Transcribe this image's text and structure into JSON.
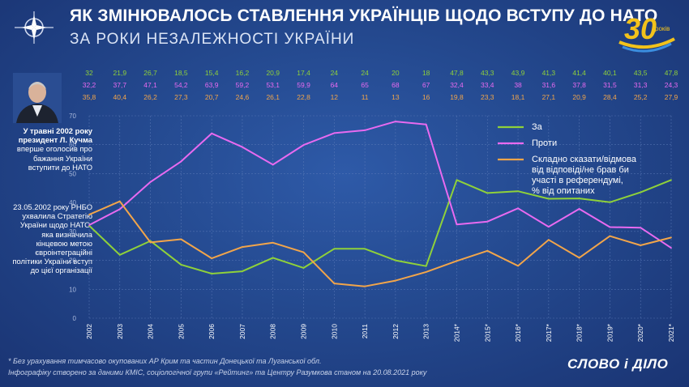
{
  "header": {
    "title": "ЯК ЗМІНЮВАЛОСЬ СТАВЛЕННЯ УКРАЇНЦІВ ЩОДО ВСТУПУ ДО НАТО",
    "subtitle": "ЗА РОКИ НЕЗАЛЕЖНОСТІ УКРАЇНИ",
    "anniversary_number": "30",
    "anniversary_word": "років"
  },
  "sidebar": {
    "note1_lead": "У травні 2002 року президент Л. Кучма",
    "note1_rest": "вперше оголосив про бажання України вступити до НАТО",
    "note2": "23.05.2002 року РНБО ухвалила Стратегію України щодо НАТО, яка визначила кінцевою метою євроінтеграційні політики України вступ до цієї організації"
  },
  "footer": {
    "note": "* Без урахування тимчасово окупованих АР Крим та частин Донецької та Луганської обл.",
    "source": "Інфографіку створено за даними КМІС, соціологічної групи «Рейтинг» та Центру Разумкова станом на 20.08.2021 року",
    "brand": "СЛОВО і ДІЛО"
  },
  "colors": {
    "for": "#8fd13a",
    "against": "#e86af0",
    "undecided": "#f2a54a",
    "background": "#24498f",
    "grid": "#5c7bb8"
  },
  "chart_data": {
    "type": "line",
    "categories": [
      "2002",
      "2003",
      "2004",
      "2005",
      "2006",
      "2007",
      "2008",
      "2009",
      "2010",
      "2011",
      "2012",
      "2013",
      "2014*",
      "2015*",
      "2016*",
      "2017*",
      "2018*",
      "2019*",
      "2020*",
      "2021*"
    ],
    "ylim": [
      0,
      70
    ],
    "yticks": [
      0,
      10,
      20,
      30,
      40,
      50,
      60,
      70
    ],
    "grid": true,
    "legend_position": "top-right",
    "series": [
      {
        "key": "for",
        "name": "За",
        "labels": [
          "32",
          "21,9",
          "26,7",
          "18,5",
          "15,4",
          "16,2",
          "20,9",
          "17,4",
          "24",
          "24",
          "20",
          "18",
          "47,8",
          "43,3",
          "43,9",
          "41,3",
          "41,4",
          "40,1",
          "43,5",
          "47,8"
        ],
        "values": [
          32,
          21.9,
          26.7,
          18.5,
          15.4,
          16.2,
          20.9,
          17.4,
          24,
          24,
          20,
          18,
          47.8,
          43.3,
          43.9,
          41.3,
          41.4,
          40.1,
          43.5,
          47.8
        ]
      },
      {
        "key": "against",
        "name": "Проти",
        "labels": [
          "32,2",
          "37,7",
          "47,1",
          "54,2",
          "63,9",
          "59,2",
          "53,1",
          "59,9",
          "64",
          "65",
          "68",
          "67",
          "32,4",
          "33,4",
          "38",
          "31,6",
          "37,8",
          "31,5",
          "31,3",
          "24,3"
        ],
        "values": [
          32.2,
          37.7,
          47.1,
          54.2,
          63.9,
          59.2,
          53.1,
          59.9,
          64,
          65,
          68,
          67,
          32.4,
          33.4,
          38,
          31.6,
          37.8,
          31.5,
          31.3,
          24.3
        ]
      },
      {
        "key": "undecided",
        "name": "Складно сказати/відмова від відповіді/не брав би участі в референдумі, % від опитаних",
        "labels": [
          "35,8",
          "40,4",
          "26,2",
          "27,3",
          "20,7",
          "24,6",
          "26,1",
          "22,8",
          "12",
          "11",
          "13",
          "16",
          "19,8",
          "23,3",
          "18,1",
          "27,1",
          "20,9",
          "28,4",
          "25,2",
          "27,9"
        ],
        "values": [
          35.8,
          40.4,
          26.2,
          27.3,
          20.7,
          24.6,
          26.1,
          22.8,
          12,
          11,
          13,
          16,
          19.8,
          23.3,
          18.1,
          27.1,
          20.9,
          28.4,
          25.2,
          27.9
        ]
      }
    ]
  }
}
